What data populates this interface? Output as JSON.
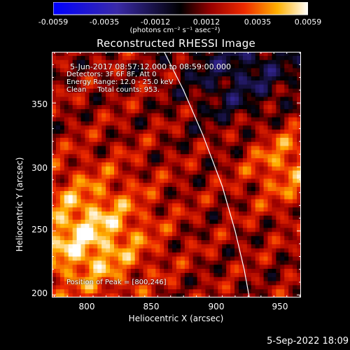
{
  "colorbar": {
    "tick_labels": [
      "-0.0059",
      "-0.0035",
      "-0.0012",
      "0.0012",
      "0.0035",
      "0.0059"
    ],
    "units": "(photons cm⁻² s⁻¹ asec⁻²)",
    "min": -0.0059,
    "max": 0.0059
  },
  "chart_data": {
    "type": "heatmap",
    "title": "Reconstructed RHESSI Image",
    "xlabel": "Heliocentric X (arcsec)",
    "ylabel": "Heliocentric Y (arcsec)",
    "xlim": [
      773,
      966
    ],
    "ylim": [
      198,
      390
    ],
    "xticks": [
      800,
      850,
      900,
      950
    ],
    "yticks": [
      200,
      250,
      300,
      350
    ],
    "x_tick_labels": [
      "800",
      "850",
      "900",
      "950"
    ],
    "y_tick_labels": [
      "200",
      "250",
      "300",
      "350"
    ],
    "annotations": {
      "time": "5-Jun-2017 08:57:12.000 to 08:59:00.000",
      "detectors": "Detectors: 3F 6F 8F, Att 0",
      "energy": "Energy Range: 12.0 - 25.0 keV",
      "clean": "Clean     Total counts: 953.",
      "peak": "Position of Peak = [800,246]"
    },
    "peak": [
      800,
      246
    ],
    "limb": [
      [
        860,
        390
      ],
      [
        875,
        360
      ],
      [
        890,
        325
      ],
      [
        905,
        285
      ],
      [
        915,
        250
      ],
      [
        922,
        220
      ],
      [
        926,
        198
      ]
    ]
  },
  "timestamp": "5-Sep-2022 18:09"
}
